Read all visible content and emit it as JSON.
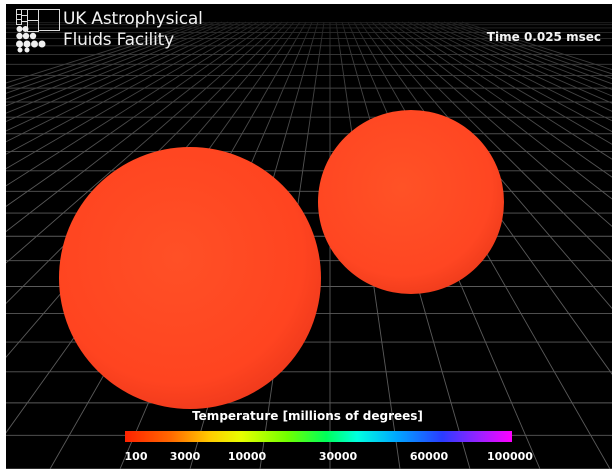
{
  "logo": {
    "icon": "ukaff-logo-icon",
    "line1": "UK Astrophysical",
    "line2": "Fluids Facility"
  },
  "time": {
    "label": "Time",
    "value": "0.025",
    "unit": "msec"
  },
  "scene": {
    "background": "#000000",
    "grid_color": "#5a5a5a",
    "spheres": [
      {
        "name": "large-star",
        "color": "#ff4a22"
      },
      {
        "name": "small-star",
        "color": "#ff4a22"
      }
    ]
  },
  "colorbar": {
    "title": "Temperature [millions of degrees]",
    "ticks": [
      "100",
      "3000",
      "10000",
      "30000",
      "60000",
      "100000"
    ]
  }
}
